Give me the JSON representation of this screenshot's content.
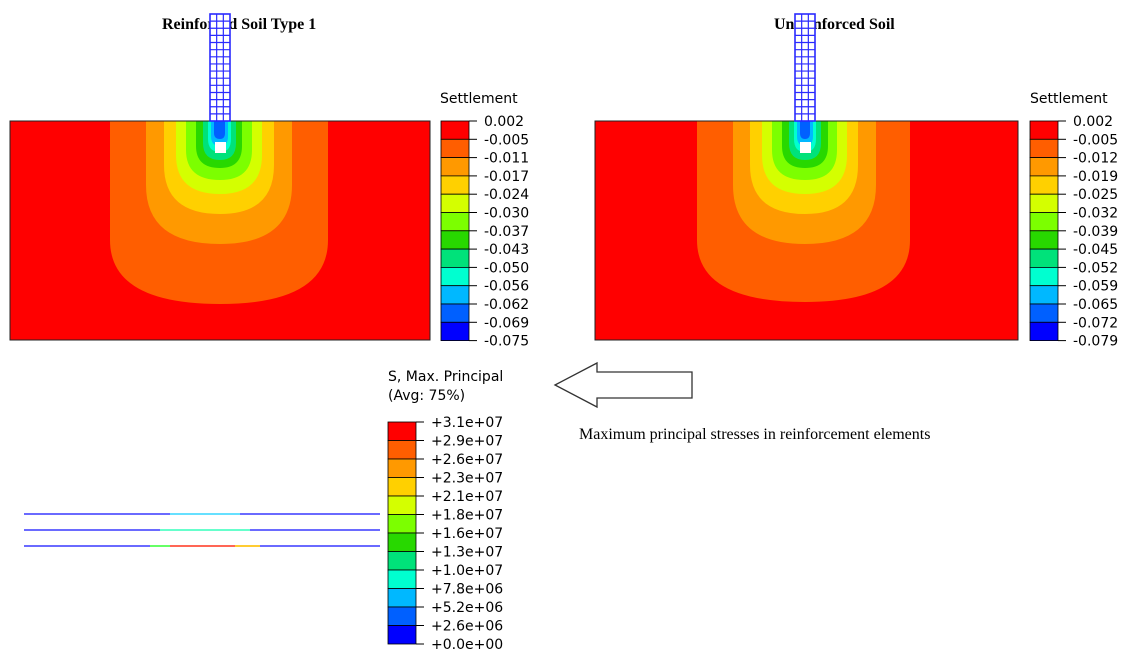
{
  "panels": {
    "left_title": "Reinforced Soil Type 1",
    "right_title": "Unreinforced Soil"
  },
  "legends": {
    "left": {
      "title": "Settlement",
      "labels": [
        "0.002",
        "-0.005",
        "-0.011",
        "-0.017",
        "-0.024",
        "-0.030",
        "-0.037",
        "-0.043",
        "-0.050",
        "-0.056",
        "-0.062",
        "-0.069",
        "-0.075"
      ]
    },
    "right": {
      "title": "Settlement",
      "labels": [
        "0.002",
        "-0.005",
        "-0.012",
        "-0.019",
        "-0.025",
        "-0.032",
        "-0.039",
        "-0.045",
        "-0.052",
        "-0.059",
        "-0.065",
        "-0.072",
        "-0.079"
      ]
    },
    "stress": {
      "title_line1": "S, Max. Principal",
      "title_line2": "(Avg: 75%)",
      "labels": [
        "+3.1e+07",
        "+2.9e+07",
        "+2.6e+07",
        "+2.3e+07",
        "+2.1e+07",
        "+1.8e+07",
        "+1.6e+07",
        "+1.3e+07",
        "+1.0e+07",
        "+7.8e+06",
        "+5.2e+06",
        "+2.6e+06",
        "+0.0e+00"
      ]
    }
  },
  "caption": "Maximum principal stresses in reinforcement elements",
  "colors": {
    "contour_bands": [
      "#ff0000",
      "#ff5e00",
      "#ff9900",
      "#ffd000",
      "#d4ff00",
      "#7cff00",
      "#28d800",
      "#00e27a",
      "#00ffd0",
      "#00b8ff",
      "#0060ff",
      "#0000ff"
    ],
    "pile_mesh": "#2a2aff",
    "reinforcement_line": "#6a6aff",
    "arrow_stroke": "#333333"
  }
}
